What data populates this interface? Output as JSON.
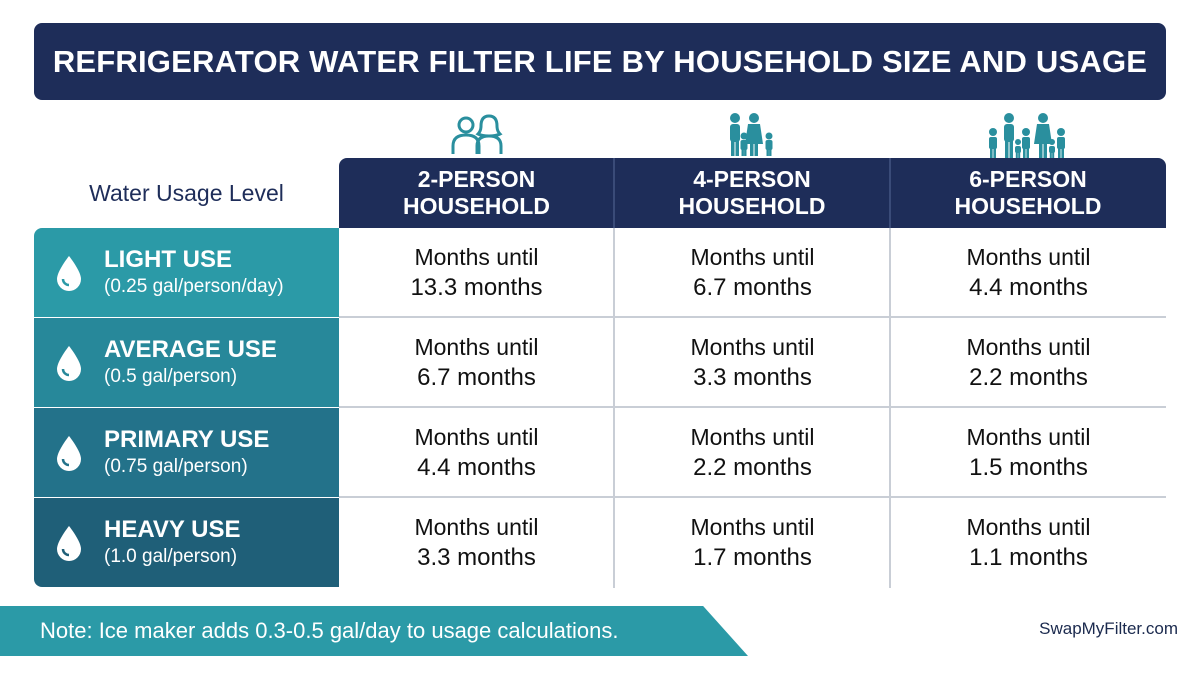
{
  "title": "REFRIGERATOR WATER FILTER LIFE BY HOUSEHOLD SIZE AND USAGE",
  "row_header_label": "Water Usage Level",
  "columns": [
    {
      "line1": "2-PERSON",
      "line2": "HOUSEHOLD",
      "icon": "two-people-icon"
    },
    {
      "line1": "4-PERSON",
      "line2": "HOUSEHOLD",
      "icon": "family-of-four-icon"
    },
    {
      "line1": "6-PERSON",
      "line2": "HOUSEHOLD",
      "icon": "family-of-six-icon"
    }
  ],
  "rows": [
    {
      "label": "LIGHT USE",
      "sub": "(0.25 gal/person/day)",
      "color": "#2b9aa7",
      "icon": "water-drop-icon"
    },
    {
      "label": "AVERAGE USE",
      "sub": "(0.5 gal/person)",
      "color": "#27889a",
      "icon": "water-drop-icon"
    },
    {
      "label": "PRIMARY USE",
      "sub": "(0.75 gal/person)",
      "color": "#23728a",
      "icon": "water-drop-icon"
    },
    {
      "label": "HEAVY USE",
      "sub": "(1.0 gal/person)",
      "color": "#1f5f78",
      "icon": "water-drop-icon"
    }
  ],
  "cells": [
    [
      {
        "l1": "Months until",
        "l2": "13.3 months"
      },
      {
        "l1": "Months until",
        "l2": "6.7 months"
      },
      {
        "l1": "Months until",
        "l2": "4.4 months"
      }
    ],
    [
      {
        "l1": "Months until",
        "l2": "6.7 months"
      },
      {
        "l1": "Months until",
        "l2": "3.3 months"
      },
      {
        "l1": "Months until",
        "l2": "2.2 months"
      }
    ],
    [
      {
        "l1": "Months until",
        "l2": "4.4 months"
      },
      {
        "l1": "Months until",
        "l2": "2.2 months"
      },
      {
        "l1": "Months until",
        "l2": "1.5 months"
      }
    ],
    [
      {
        "l1": "Months until",
        "l2": "3.3 months"
      },
      {
        "l1": "Months until",
        "l2": "1.7 months"
      },
      {
        "l1": "Months until",
        "l2": "1.1 months"
      }
    ]
  ],
  "note": "Note: Ice maker adds 0.3-0.5 gal/day to usage calculations.",
  "brand": "SwapMyFilter.com",
  "colors": {
    "navy": "#1e2d59",
    "teal": "#2b9aa7",
    "icon_teal": "#2a8f9e"
  },
  "chart_data": {
    "type": "table",
    "title": "REFRIGERATOR WATER FILTER LIFE BY HOUSEHOLD SIZE AND USAGE",
    "row_header": "Water Usage Level",
    "columns": [
      "2-PERSON HOUSEHOLD",
      "4-PERSON HOUSEHOLD",
      "6-PERSON HOUSEHOLD"
    ],
    "rows": [
      "LIGHT USE (0.25 gal/person/day)",
      "AVERAGE USE (0.5 gal/person)",
      "PRIMARY USE (0.75 gal/person)",
      "HEAVY USE (1.0 gal/person)"
    ],
    "values": [
      [
        13.3,
        6.7,
        4.4
      ],
      [
        6.7,
        3.3,
        2.2
      ],
      [
        4.4,
        2.2,
        1.5
      ],
      [
        3.3,
        1.7,
        1.1
      ]
    ],
    "unit": "months"
  }
}
